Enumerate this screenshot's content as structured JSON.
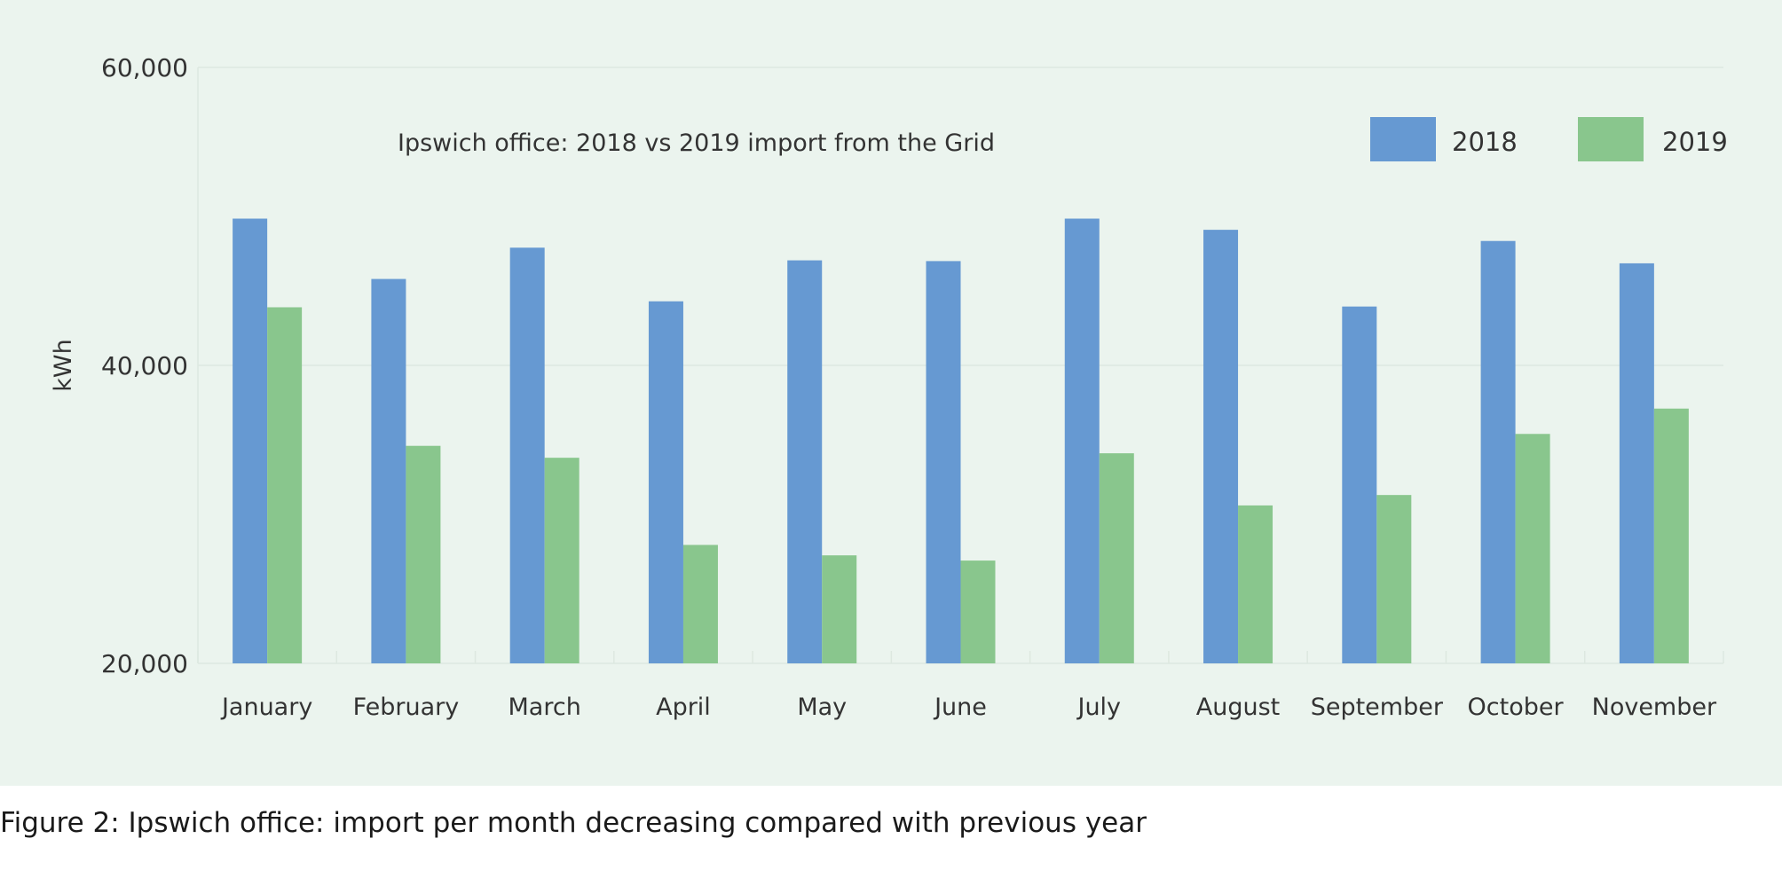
{
  "chart_data": {
    "type": "bar",
    "title": "Ipswich office: 2018 vs 2019 import from the Grid",
    "ylabel": "kWh",
    "xlabel": "",
    "ylim": [
      20000,
      60000
    ],
    "yticks": [
      20000,
      40000,
      60000
    ],
    "ytick_labels": [
      "20,000",
      "40,000",
      "60,000"
    ],
    "grid": true,
    "legend_position": "top-right",
    "categories": [
      "January",
      "February",
      "March",
      "April",
      "May",
      "June",
      "July",
      "August",
      "September",
      "October",
      "November"
    ],
    "series": [
      {
        "name": "2018",
        "color": "#6699d2",
        "values": [
          49850,
          45800,
          47900,
          44300,
          47050,
          47000,
          49850,
          49100,
          43950,
          48350,
          46850
        ]
      },
      {
        "name": "2019",
        "color": "#89c68d",
        "values": [
          43900,
          34600,
          33800,
          27950,
          27250,
          26900,
          34100,
          30600,
          31300,
          35400,
          37100
        ]
      }
    ]
  },
  "caption": "Figure 2: Ipswich office: import per month decreasing compared with previous year"
}
